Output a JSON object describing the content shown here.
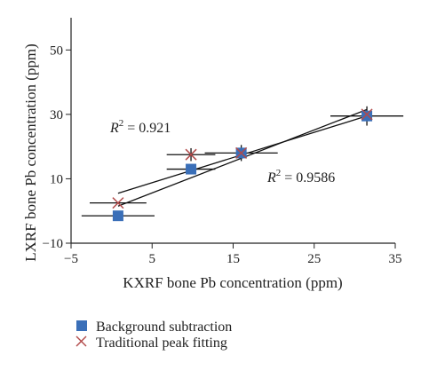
{
  "chart_data": {
    "type": "scatter",
    "xlabel": "KXRF bone Pb concentration (ppm)",
    "ylabel": "LXRF bone Pb concentration (ppm)",
    "xlim": [
      -5,
      35
    ],
    "ylim": [
      -10,
      60
    ],
    "x_ticks": [
      "-5",
      "5",
      "15",
      "25",
      "35"
    ],
    "y_ticks": [
      "-10",
      "10",
      "30",
      "50"
    ],
    "grid": false,
    "legend_position": "bottom-left, below plot",
    "series": [
      {
        "name": "Background subtraction",
        "marker": "square",
        "color": "#3a6fb8",
        "points": [
          {
            "x": 0.8,
            "y": -1.5,
            "xerr": 4.5,
            "yerr": 0
          },
          {
            "x": 9.8,
            "y": 13,
            "xerr": 3.0,
            "yerr": 0
          },
          {
            "x": 16.0,
            "y": 18,
            "xerr": 4.5,
            "yerr": 2.5
          },
          {
            "x": 31.5,
            "y": 29.5,
            "xerr": 4.5,
            "yerr": 3.0
          }
        ],
        "fit": {
          "x": [
            0.8,
            31.5
          ],
          "y": [
            1.5,
            31.5
          ]
        }
      },
      {
        "name": "Traditional peak fitting",
        "marker": "x",
        "color": "#b24a4a",
        "points": [
          {
            "x": 0.8,
            "y": 2.5,
            "xerr": 3.5,
            "yerr": 0
          },
          {
            "x": 9.8,
            "y": 17.5,
            "xerr": 3.0,
            "yerr": 2.0
          },
          {
            "x": 16.0,
            "y": 18,
            "xerr": 0,
            "yerr": 0
          },
          {
            "x": 31.5,
            "y": 30,
            "xerr": 0,
            "yerr": 0
          }
        ],
        "fit": {
          "x": [
            0.8,
            31.5
          ],
          "y": [
            5.5,
            29.5
          ]
        }
      }
    ],
    "annotations": [
      {
        "label": "R",
        "sup": "2",
        "value": " = 0.921"
      },
      {
        "label": "R",
        "sup": "2",
        "value": " = 0.9586"
      }
    ]
  }
}
